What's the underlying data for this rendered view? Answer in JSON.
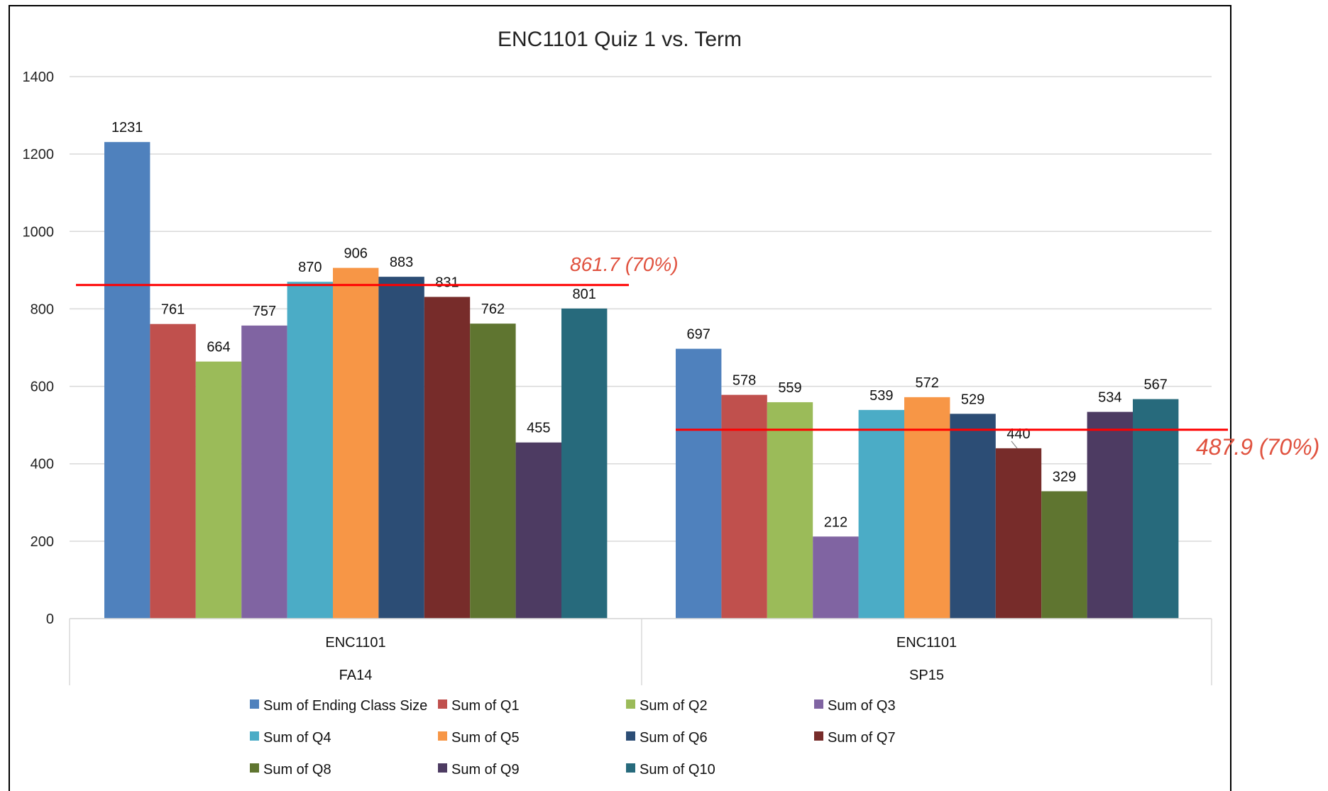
{
  "chart_data": {
    "type": "bar",
    "title": "ENC1101 Quiz 1 vs. Term",
    "xlabel": "",
    "ylabel": "",
    "ylim": [
      0,
      1400
    ],
    "yticks": [
      0,
      200,
      400,
      600,
      800,
      1000,
      1200,
      1400
    ],
    "grid": true,
    "legend_position": "bottom",
    "groups": [
      {
        "course": "ENC1101",
        "term": "FA14"
      },
      {
        "course": "ENC1101",
        "term": "SP15"
      }
    ],
    "series": [
      {
        "name": "Sum of Ending Class Size",
        "color": "#4f81bd",
        "values": [
          1231,
          697
        ]
      },
      {
        "name": "Sum of Q1",
        "color": "#c0504d",
        "values": [
          761,
          578
        ]
      },
      {
        "name": "Sum of Q2",
        "color": "#9bbb59",
        "values": [
          664,
          559
        ]
      },
      {
        "name": "Sum of Q3",
        "color": "#8064a2",
        "values": [
          757,
          212
        ]
      },
      {
        "name": "Sum of Q4",
        "color": "#4bacc6",
        "values": [
          870,
          539
        ]
      },
      {
        "name": "Sum of Q5",
        "color": "#f79646",
        "values": [
          906,
          572
        ]
      },
      {
        "name": "Sum of Q6",
        "color": "#2c4d75",
        "values": [
          883,
          529
        ]
      },
      {
        "name": "Sum of Q7",
        "color": "#772c2a",
        "values": [
          831,
          440
        ]
      },
      {
        "name": "Sum of Q8",
        "color": "#5f7530",
        "values": [
          762,
          329
        ]
      },
      {
        "name": "Sum of Q9",
        "color": "#4d3b62",
        "values": [
          455,
          534
        ]
      },
      {
        "name": "Sum of Q10",
        "color": "#276a7c",
        "values": [
          801,
          567
        ]
      }
    ],
    "reference_lines": [
      {
        "group": 0,
        "value": 861.7,
        "label": "861.7 (70%)",
        "color": "#ff0000"
      },
      {
        "group": 1,
        "value": 487.9,
        "label": "487.9 (70%)",
        "color": "#ff0000"
      }
    ]
  }
}
